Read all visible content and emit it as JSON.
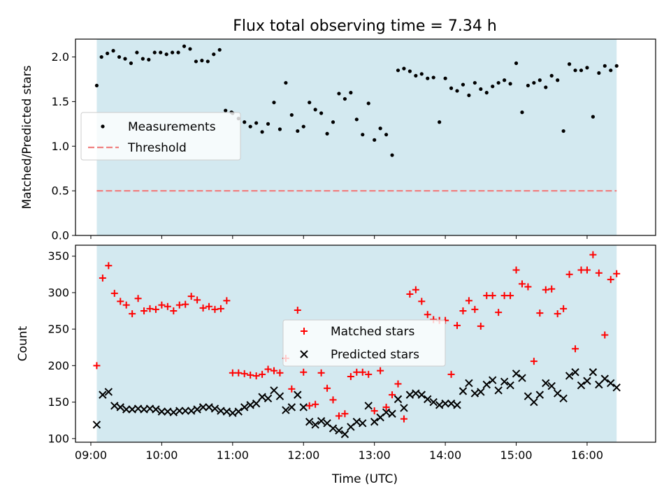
{
  "figure_title": "Flux total observing time = 7.34 h",
  "xlabel": "Time (UTC)",
  "x_tick_labels": [
    "09:00",
    "10:00",
    "11:00",
    "12:00",
    "13:00",
    "14:00",
    "15:00",
    "16:00"
  ],
  "colors": {
    "span": "#d3e9f0",
    "measurements": "#000000",
    "threshold": "#f08080",
    "matched": "#ff0000",
    "predicted": "#000000"
  },
  "chart_data": [
    {
      "type": "scatter",
      "ylabel": "Matched/Predicted stars",
      "ylim": [
        0,
        2.2
      ],
      "y_ticks": [
        "0.0",
        "0.5",
        "1.0",
        "1.5",
        "2.0"
      ],
      "xlim": [
        "08:47",
        "16:58"
      ],
      "observing_span": [
        "09:05",
        "16:25"
      ],
      "legend_position": "center-left",
      "series": [
        {
          "name": "Measurements",
          "marker": "dot",
          "x": [
            "09:05",
            "09:09",
            "09:14",
            "09:19",
            "09:24",
            "09:29",
            "09:34",
            "09:39",
            "09:44",
            "09:49",
            "09:54",
            "09:59",
            "10:04",
            "10:09",
            "10:14",
            "10:19",
            "10:24",
            "10:29",
            "10:34",
            "10:39",
            "10:44",
            "10:49",
            "10:54",
            "10:59",
            "11:00",
            "11:05",
            "11:10",
            "11:15",
            "11:20",
            "11:25",
            "11:30",
            "11:35",
            "11:40",
            "11:45",
            "11:50",
            "11:55",
            "12:00",
            "12:05",
            "12:10",
            "12:15",
            "12:20",
            "12:25",
            "12:30",
            "12:35",
            "12:40",
            "12:45",
            "12:50",
            "12:55",
            "13:00",
            "13:05",
            "13:10",
            "13:15",
            "13:20",
            "13:25",
            "13:30",
            "13:35",
            "13:40",
            "13:45",
            "13:50",
            "13:55",
            "14:00",
            "14:05",
            "14:10",
            "14:15",
            "14:20",
            "14:25",
            "14:30",
            "14:35",
            "14:40",
            "14:45",
            "14:50",
            "14:55",
            "15:00",
            "15:05",
            "15:10",
            "15:15",
            "15:20",
            "15:25",
            "15:30",
            "15:35",
            "15:40",
            "15:45",
            "15:50",
            "15:55",
            "16:00",
            "16:05",
            "16:10",
            "16:15",
            "16:20",
            "16:25"
          ],
          "values": [
            1.68,
            2.0,
            2.04,
            2.07,
            2.0,
            1.98,
            1.93,
            2.05,
            1.98,
            1.97,
            2.05,
            2.05,
            2.03,
            2.05,
            2.05,
            2.12,
            2.09,
            1.95,
            1.96,
            1.95,
            2.03,
            2.08,
            1.4,
            1.38,
            1.37,
            1.31,
            1.27,
            1.22,
            1.26,
            1.16,
            1.25,
            1.49,
            1.19,
            1.71,
            1.35,
            1.17,
            1.22,
            1.49,
            1.41,
            1.37,
            1.14,
            1.27,
            1.59,
            1.53,
            1.6,
            1.3,
            1.13,
            1.48,
            1.07,
            1.2,
            1.13,
            0.9,
            1.85,
            1.87,
            1.84,
            1.79,
            1.81,
            1.76,
            1.77,
            1.27,
            1.76,
            1.65,
            1.62,
            1.69,
            1.57,
            1.71,
            1.64,
            1.6,
            1.67,
            1.71,
            1.74,
            1.7,
            1.93,
            1.38,
            1.68,
            1.71,
            1.74,
            1.66,
            1.79,
            1.74,
            1.17,
            1.92,
            1.85,
            1.85,
            1.88,
            1.33,
            1.82,
            1.9,
            1.85,
            1.9
          ]
        },
        {
          "name": "Threshold",
          "marker": "dashed-line",
          "x": [
            "09:05",
            "16:25"
          ],
          "values": [
            0.5,
            0.5
          ]
        }
      ]
    },
    {
      "type": "scatter",
      "ylabel": "Count",
      "ylim": [
        95,
        365
      ],
      "y_ticks": [
        "100",
        "150",
        "200",
        "250",
        "300",
        "350"
      ],
      "xlim": [
        "08:47",
        "16:58"
      ],
      "observing_span": [
        "09:05",
        "16:25"
      ],
      "legend_position": "center",
      "x": [
        "09:05",
        "09:10",
        "09:15",
        "09:20",
        "09:25",
        "09:30",
        "09:35",
        "09:40",
        "09:45",
        "09:50",
        "09:55",
        "10:00",
        "10:05",
        "10:10",
        "10:15",
        "10:20",
        "10:25",
        "10:30",
        "10:35",
        "10:40",
        "10:45",
        "10:50",
        "10:55",
        "11:00",
        "11:05",
        "11:10",
        "11:15",
        "11:20",
        "11:25",
        "11:30",
        "11:35",
        "11:40",
        "11:45",
        "11:50",
        "11:55",
        "12:00",
        "12:05",
        "12:10",
        "12:15",
        "12:20",
        "12:25",
        "12:30",
        "12:35",
        "12:40",
        "12:45",
        "12:50",
        "12:55",
        "13:00",
        "13:05",
        "13:10",
        "13:15",
        "13:20",
        "13:25",
        "13:30",
        "13:35",
        "13:40",
        "13:45",
        "13:50",
        "13:55",
        "14:00",
        "14:05",
        "14:10",
        "14:15",
        "14:20",
        "14:25",
        "14:30",
        "14:35",
        "14:40",
        "14:45",
        "14:50",
        "14:55",
        "15:00",
        "15:05",
        "15:10",
        "15:15",
        "15:20",
        "15:25",
        "15:30",
        "15:35",
        "15:40",
        "15:45",
        "15:50",
        "15:55",
        "16:00",
        "16:05",
        "16:10",
        "16:15",
        "16:20",
        "16:25"
      ],
      "series": [
        {
          "name": "Matched stars",
          "marker": "plus",
          "values": [
            200,
            320,
            337,
            299,
            288,
            283,
            271,
            292,
            275,
            278,
            277,
            283,
            281,
            275,
            283,
            284,
            295,
            290,
            279,
            281,
            277,
            278,
            289,
            190,
            190,
            189,
            187,
            186,
            188,
            195,
            193,
            190,
            210,
            168,
            276,
            191,
            145,
            147,
            190,
            169,
            153,
            131,
            134,
            185,
            191,
            191,
            188,
            138,
            193,
            143,
            160,
            175,
            127,
            298,
            304,
            288,
            270,
            263,
            262,
            262,
            188,
            255,
            275,
            289,
            277,
            254,
            296,
            296,
            273,
            296,
            296,
            331,
            312,
            308,
            206,
            272,
            304,
            305,
            271,
            278,
            325,
            223,
            331,
            331,
            352,
            327,
            242,
            318,
            326
          ]
        },
        {
          "name": "Predicted stars",
          "marker": "x",
          "values": [
            119,
            160,
            164,
            145,
            143,
            140,
            140,
            141,
            140,
            141,
            140,
            137,
            137,
            136,
            138,
            138,
            138,
            140,
            143,
            143,
            141,
            138,
            137,
            135,
            137,
            143,
            146,
            148,
            157,
            155,
            166,
            158,
            139,
            143,
            160,
            143,
            123,
            119,
            124,
            121,
            114,
            111,
            106,
            116,
            123,
            121,
            145,
            123,
            129,
            136,
            134,
            154,
            142,
            160,
            162,
            160,
            154,
            150,
            146,
            148,
            148,
            146,
            165,
            176,
            162,
            164,
            174,
            180,
            166,
            178,
            173,
            189,
            183,
            158,
            150,
            160,
            176,
            172,
            162,
            155,
            186,
            191,
            173,
            179,
            191,
            174,
            182,
            176,
            170
          ]
        }
      ]
    }
  ]
}
